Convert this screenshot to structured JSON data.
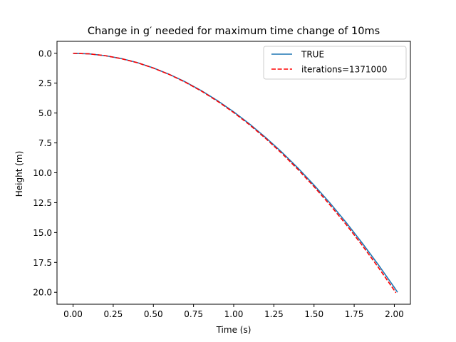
{
  "chart_data": {
    "type": "line",
    "title": "Change in g′ needed for maximum time change of 10ms",
    "xlabel": "Time (s)",
    "ylabel": "Height (m)",
    "xlim": [
      -0.1,
      2.1
    ],
    "ylim": [
      21.0,
      -1.0
    ],
    "y_inverted": true,
    "xticks": [
      "0.00",
      "0.25",
      "0.50",
      "0.75",
      "1.00",
      "1.25",
      "1.50",
      "1.75",
      "2.00"
    ],
    "yticks": [
      "0.0",
      "2.5",
      "5.0",
      "7.5",
      "10.0",
      "12.5",
      "15.0",
      "17.5",
      "20.0"
    ],
    "grid": false,
    "legend_position": "upper right",
    "series": [
      {
        "name": "TRUE",
        "color": "#1f77b4",
        "style": "solid",
        "x": [
          0.0,
          0.1,
          0.2,
          0.3,
          0.4,
          0.5,
          0.6,
          0.7,
          0.8,
          0.9,
          1.0,
          1.1,
          1.2,
          1.3,
          1.4,
          1.5,
          1.6,
          1.7,
          1.8,
          1.9,
          2.0,
          2.02
        ],
        "y": [
          0.0,
          0.05,
          0.2,
          0.44,
          0.78,
          1.23,
          1.77,
          2.4,
          3.14,
          3.97,
          4.9,
          5.93,
          7.06,
          8.28,
          9.6,
          11.03,
          12.54,
          14.16,
          15.88,
          17.69,
          19.6,
          20.0
        ]
      },
      {
        "name": "iterations=1371000",
        "color": "#ff0000",
        "style": "dashed",
        "x": [
          0.0,
          0.1,
          0.2,
          0.3,
          0.4,
          0.5,
          0.6,
          0.7,
          0.8,
          0.9,
          1.0,
          1.1,
          1.2,
          1.3,
          1.4,
          1.5,
          1.6,
          1.7,
          1.8,
          1.9,
          2.0,
          2.01
        ],
        "y": [
          0.0,
          0.05,
          0.2,
          0.45,
          0.79,
          1.24,
          1.78,
          2.43,
          3.17,
          4.02,
          4.96,
          6.0,
          7.14,
          8.38,
          9.72,
          11.16,
          12.7,
          14.33,
          16.07,
          17.91,
          19.84,
          20.04
        ]
      }
    ]
  }
}
